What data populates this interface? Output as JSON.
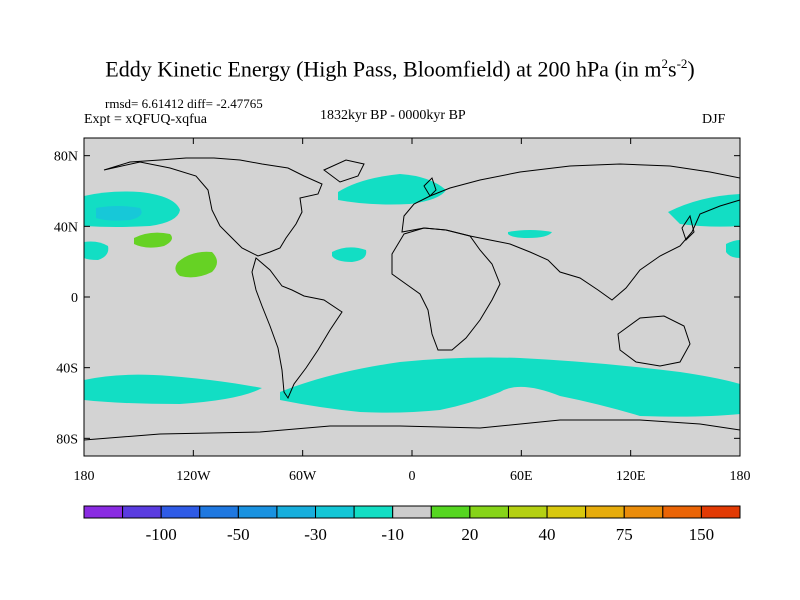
{
  "title": {
    "text": "Eddy Kinetic Energy (High Pass, Bloomfield) at 200 hPa (in m",
    "unit_sup1": "2",
    "unit_s": "s",
    "unit_sup2": "-2",
    "close": ")"
  },
  "stats": "rmsd= 6.61412  diff= -2.47765",
  "expt": "Expt = xQFUQ-xqfua",
  "period": "1832kyr BP - 0000kyr BP",
  "season": "DJF",
  "axes": {
    "y_ticks": [
      {
        "value": 80,
        "label": "80N"
      },
      {
        "value": 40,
        "label": "40N"
      },
      {
        "value": 0,
        "label": "0"
      },
      {
        "value": -40,
        "label": "40S"
      },
      {
        "value": -80,
        "label": "80S"
      }
    ],
    "x_ticks": [
      {
        "value": -180,
        "label": "180"
      },
      {
        "value": -120,
        "label": "120W"
      },
      {
        "value": -60,
        "label": "60W"
      },
      {
        "value": 0,
        "label": "0"
      },
      {
        "value": 60,
        "label": "60E"
      },
      {
        "value": 120,
        "label": "120E"
      },
      {
        "value": 180,
        "label": "180"
      }
    ]
  },
  "colorbar": {
    "colors": [
      "#8a2be2",
      "#5a3ce0",
      "#2f5be6",
      "#1f78e0",
      "#1a92e0",
      "#17aedc",
      "#13c6d6",
      "#12dec4",
      "#cccccc",
      "#55d620",
      "#86d418",
      "#b4d012",
      "#d8c80e",
      "#e6ac0c",
      "#ea8c0a",
      "#ea6406",
      "#e23a04"
    ],
    "labels": [
      {
        "after_box": 2,
        "text": "-100"
      },
      {
        "after_box": 4,
        "text": "-50"
      },
      {
        "after_box": 6,
        "text": "-30"
      },
      {
        "after_box": 8,
        "text": "-10"
      },
      {
        "after_box": 10,
        "text": "20"
      },
      {
        "after_box": 12,
        "text": "40"
      },
      {
        "after_box": 14,
        "text": "75"
      },
      {
        "after_box": 16,
        "text": "150"
      }
    ]
  },
  "map_colors": {
    "background": "#d3d3d3",
    "negative_region": "#12dec4",
    "negative_region_strong": "#17c8d8",
    "positive_region": "#66d224"
  }
}
